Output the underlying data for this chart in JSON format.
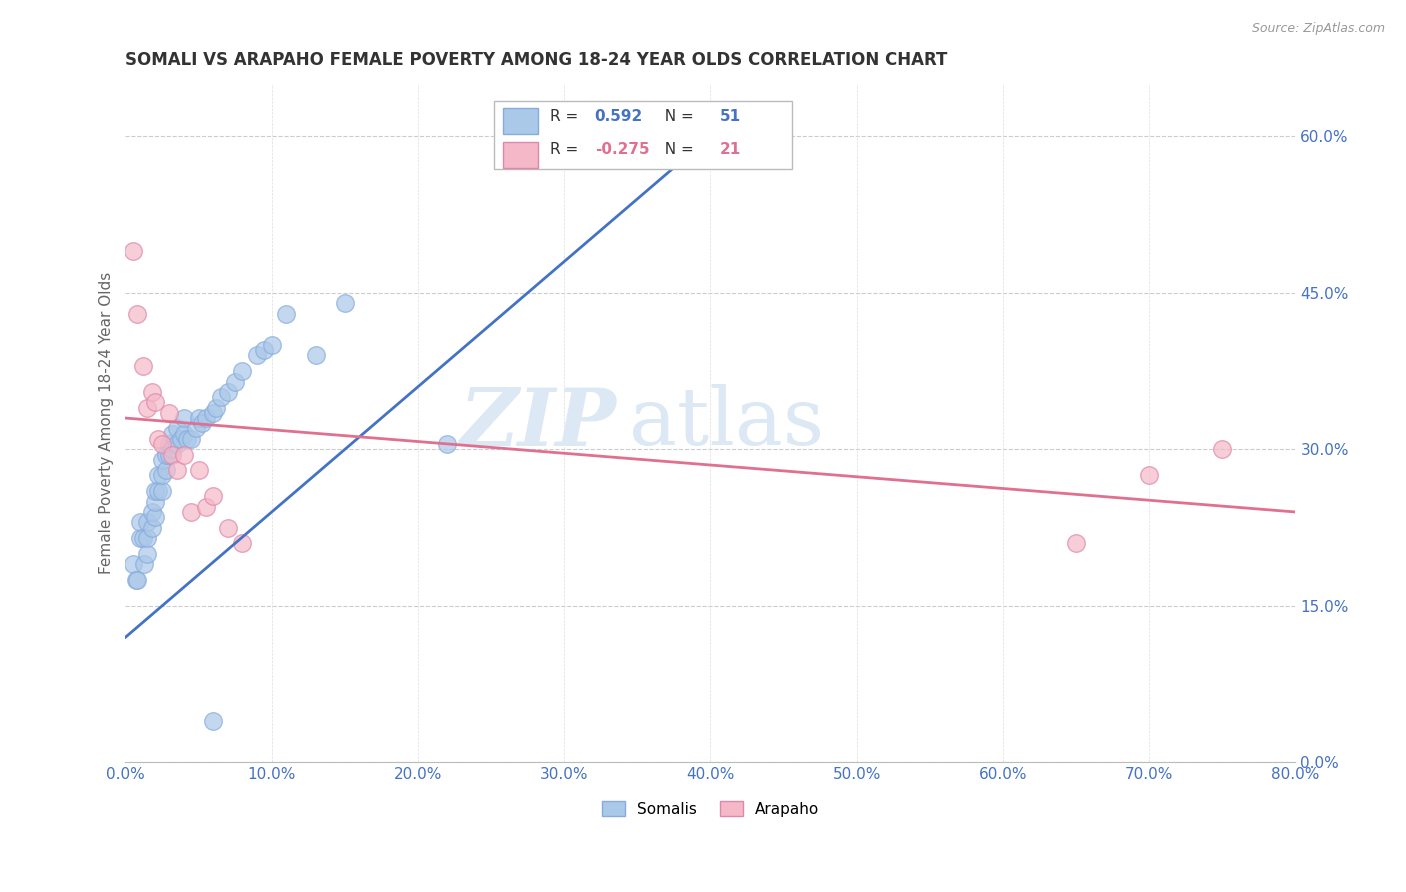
{
  "title": "SOMALI VS ARAPAHO FEMALE POVERTY AMONG 18-24 YEAR OLDS CORRELATION CHART",
  "source": "Source: ZipAtlas.com",
  "ylabel": "Female Poverty Among 18-24 Year Olds",
  "xlim": [
    0.0,
    0.8
  ],
  "ylim": [
    0.0,
    0.65
  ],
  "yticks": [
    0.0,
    0.15,
    0.3,
    0.45,
    0.6
  ],
  "xticks": [
    0.0,
    0.1,
    0.2,
    0.3,
    0.4,
    0.5,
    0.6,
    0.7,
    0.8
  ],
  "background_color": "#ffffff",
  "watermark_zip": "ZIP",
  "watermark_atlas": "atlas",
  "somali_color": "#aac8e8",
  "arapaho_color": "#f5b8c8",
  "somali_line_color": "#4472c4",
  "arapaho_line_color": "#e07090",
  "somali_R": "0.592",
  "somali_N": "51",
  "arapaho_R": "-0.275",
  "arapaho_N": "21",
  "somali_x": [
    0.005,
    0.007,
    0.008,
    0.01,
    0.01,
    0.012,
    0.013,
    0.015,
    0.015,
    0.015,
    0.018,
    0.018,
    0.02,
    0.02,
    0.02,
    0.022,
    0.022,
    0.025,
    0.025,
    0.025,
    0.028,
    0.028,
    0.03,
    0.03,
    0.032,
    0.032,
    0.035,
    0.035,
    0.038,
    0.04,
    0.04,
    0.042,
    0.045,
    0.048,
    0.05,
    0.052,
    0.055,
    0.06,
    0.062,
    0.065,
    0.07,
    0.075,
    0.08,
    0.09,
    0.095,
    0.1,
    0.11,
    0.13,
    0.15,
    0.22,
    0.06
  ],
  "somali_y": [
    0.19,
    0.175,
    0.175,
    0.215,
    0.23,
    0.215,
    0.19,
    0.2,
    0.215,
    0.23,
    0.225,
    0.24,
    0.235,
    0.25,
    0.26,
    0.26,
    0.275,
    0.26,
    0.275,
    0.29,
    0.28,
    0.295,
    0.295,
    0.305,
    0.3,
    0.315,
    0.305,
    0.32,
    0.31,
    0.315,
    0.33,
    0.31,
    0.31,
    0.32,
    0.33,
    0.325,
    0.33,
    0.335,
    0.34,
    0.35,
    0.355,
    0.365,
    0.375,
    0.39,
    0.395,
    0.4,
    0.43,
    0.39,
    0.44,
    0.305,
    0.04
  ],
  "arapaho_x": [
    0.005,
    0.008,
    0.012,
    0.015,
    0.018,
    0.02,
    0.022,
    0.025,
    0.03,
    0.032,
    0.035,
    0.04,
    0.045,
    0.05,
    0.055,
    0.06,
    0.07,
    0.08,
    0.65,
    0.7,
    0.75
  ],
  "arapaho_y": [
    0.49,
    0.43,
    0.38,
    0.34,
    0.355,
    0.345,
    0.31,
    0.305,
    0.335,
    0.295,
    0.28,
    0.295,
    0.24,
    0.28,
    0.245,
    0.255,
    0.225,
    0.21,
    0.21,
    0.275,
    0.3
  ]
}
